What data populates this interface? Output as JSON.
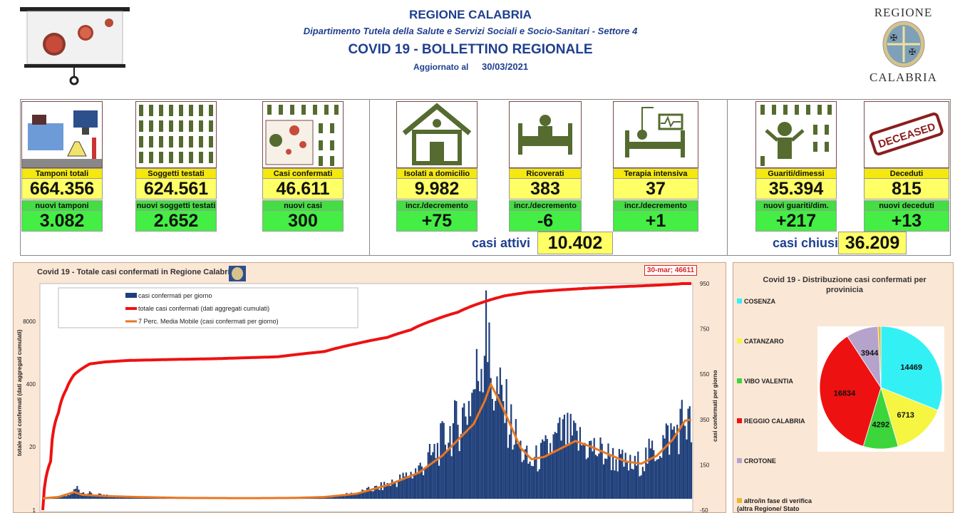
{
  "header": {
    "region": "REGIONE CALABRIA",
    "department": "Dipartimento Tutela della Salute e Servizi Sociali e Socio-Sanitari - Settore 4",
    "bulletin": "COVID 19 - BOLLETTINO REGIONALE",
    "updated_label": "Aggiornato al",
    "updated_date": "30/03/2021",
    "logo_top": "REGIONE",
    "logo_bottom": "CALABRIA"
  },
  "stats": {
    "tamponi": {
      "label": "Tamponi totali",
      "value": "664.356",
      "new_label": "nuovi tamponi",
      "new_value": "3.082"
    },
    "soggetti": {
      "label": "Soggetti testati",
      "value": "624.561",
      "new_label": "nuovi soggetti testati",
      "new_value": "2.652"
    },
    "casi": {
      "label": "Casi confermati",
      "value": "46.611",
      "new_label": "nuovi casi",
      "new_value": "300"
    },
    "isolati": {
      "label": "Isolati a domicilio",
      "value": "9.982",
      "new_label": "incr./decremento",
      "new_value": "+75"
    },
    "ricoverati": {
      "label": "Ricoverati",
      "value": "383",
      "new_label": "incr./decremento",
      "new_value": "-6"
    },
    "terapia": {
      "label": "Terapia intensiva",
      "value": "37",
      "new_label": "incr./decremento",
      "new_value": "+1"
    },
    "guariti": {
      "label": "Guariti/dimessi",
      "value": "35.394",
      "new_label": "nuovi guariti/dim.",
      "new_value": "+217"
    },
    "deceduti": {
      "label": "Deceduti",
      "value": "815",
      "new_label": "nuovi deceduti",
      "new_value": "+13"
    },
    "casi_attivi": {
      "label": "casi attivi",
      "value": "10.402"
    },
    "casi_chiusi": {
      "label": "casi chiusi",
      "value": "36.209"
    },
    "deceased_stamp": "DECEASED"
  },
  "colors": {
    "navy": "#1f3f8f",
    "yellow": "#ffff66",
    "label_yellow": "#f4e80f",
    "green": "#44ee44",
    "panel": "#fbe7d6"
  },
  "chart_data": [
    {
      "type": "line",
      "title": "Covid 19 - Totale casi confermati in Regione Calabria",
      "ylabel": "totale casi confermati (dati aggregati cumulati)",
      "y2label": "casi confermati per giorno",
      "y_ticks": [
        "1",
        "20",
        "400",
        "8000"
      ],
      "y_scale": "log",
      "y2_ticks": [
        "-50",
        "150",
        "350",
        "550",
        "750",
        "950"
      ],
      "callout": "30-mar; 46611",
      "legend": [
        "casi confermati per giorno",
        "totale casi confermati (dati aggregati cumulati)",
        "7 Perc. Media Mobile (casi confermati per giorno)"
      ],
      "series_colors": {
        "bars": "#1f3f7a",
        "total": "#ee1111",
        "moving_avg": "#e87722"
      },
      "daily_anchors": [
        [
          0,
          2
        ],
        [
          15,
          12
        ],
        [
          18,
          20
        ],
        [
          22,
          50
        ],
        [
          25,
          30
        ],
        [
          35,
          18
        ],
        [
          50,
          8
        ],
        [
          80,
          4
        ],
        [
          120,
          3
        ],
        [
          150,
          3
        ],
        [
          170,
          6
        ],
        [
          185,
          10
        ],
        [
          200,
          25
        ],
        [
          215,
          50
        ],
        [
          230,
          90
        ],
        [
          240,
          130
        ],
        [
          250,
          200
        ],
        [
          258,
          280
        ],
        [
          265,
          330
        ],
        [
          272,
          420
        ],
        [
          278,
          550
        ],
        [
          283,
          760
        ],
        [
          286,
          520
        ],
        [
          290,
          470
        ],
        [
          296,
          380
        ],
        [
          300,
          300
        ],
        [
          305,
          220
        ],
        [
          311,
          150
        ],
        [
          318,
          190
        ],
        [
          325,
          235
        ],
        [
          332,
          290
        ],
        [
          340,
          260
        ],
        [
          348,
          230
        ],
        [
          355,
          210
        ],
        [
          363,
          185
        ],
        [
          370,
          160
        ],
        [
          377,
          140
        ],
        [
          384,
          175
        ],
        [
          391,
          215
        ],
        [
          398,
          265
        ],
        [
          405,
          305
        ],
        [
          410,
          360
        ],
        [
          414,
          300
        ]
      ],
      "total_anchors": [
        [
          0,
          1
        ],
        [
          5,
          10
        ],
        [
          10,
          100
        ],
        [
          15,
          300
        ],
        [
          20,
          600
        ],
        [
          30,
          1000
        ],
        [
          40,
          1100
        ],
        [
          55,
          1180
        ],
        [
          80,
          1230
        ],
        [
          110,
          1280
        ],
        [
          150,
          1400
        ],
        [
          180,
          1800
        ],
        [
          200,
          2600
        ],
        [
          220,
          3500
        ],
        [
          235,
          5000
        ],
        [
          250,
          8000
        ],
        [
          265,
          11500
        ],
        [
          280,
          18000
        ],
        [
          295,
          25000
        ],
        [
          310,
          29500
        ],
        [
          330,
          33000
        ],
        [
          350,
          36000
        ],
        [
          370,
          38500
        ],
        [
          390,
          41000
        ],
        [
          405,
          43500
        ],
        [
          414,
          46611
        ]
      ],
      "ma_anchors": [
        [
          0,
          2
        ],
        [
          10,
          8
        ],
        [
          20,
          30
        ],
        [
          25,
          18
        ],
        [
          40,
          12
        ],
        [
          60,
          8
        ],
        [
          90,
          4
        ],
        [
          130,
          3
        ],
        [
          160,
          4
        ],
        [
          180,
          8
        ],
        [
          200,
          22
        ],
        [
          220,
          60
        ],
        [
          240,
          115
        ],
        [
          255,
          190
        ],
        [
          265,
          260
        ],
        [
          275,
          330
        ],
        [
          282,
          430
        ],
        [
          286,
          505
        ],
        [
          291,
          440
        ],
        [
          297,
          350
        ],
        [
          305,
          225
        ],
        [
          312,
          175
        ],
        [
          320,
          185
        ],
        [
          330,
          220
        ],
        [
          340,
          255
        ],
        [
          350,
          230
        ],
        [
          360,
          200
        ],
        [
          372,
          165
        ],
        [
          382,
          155
        ],
        [
          392,
          190
        ],
        [
          402,
          260
        ],
        [
          410,
          345
        ],
        [
          414,
          350
        ]
      ]
    },
    {
      "type": "pie",
      "title": "Covid 19 - Distribuzione casi confermati per provinicia",
      "categories": [
        "COSENZA",
        "CATANZARO",
        "VIBO VALENTIA",
        "REGGIO CALABRIA",
        "CROTONE",
        "altro/in fase di verifica (altra Regione/ Stato"
      ],
      "values": [
        14469,
        6713,
        4292,
        16834,
        3944,
        359
      ],
      "colors": [
        "#33f0f5",
        "#f5f542",
        "#3cd53c",
        "#ee1111",
        "#b5a3cc",
        "#e8b830"
      ]
    }
  ]
}
